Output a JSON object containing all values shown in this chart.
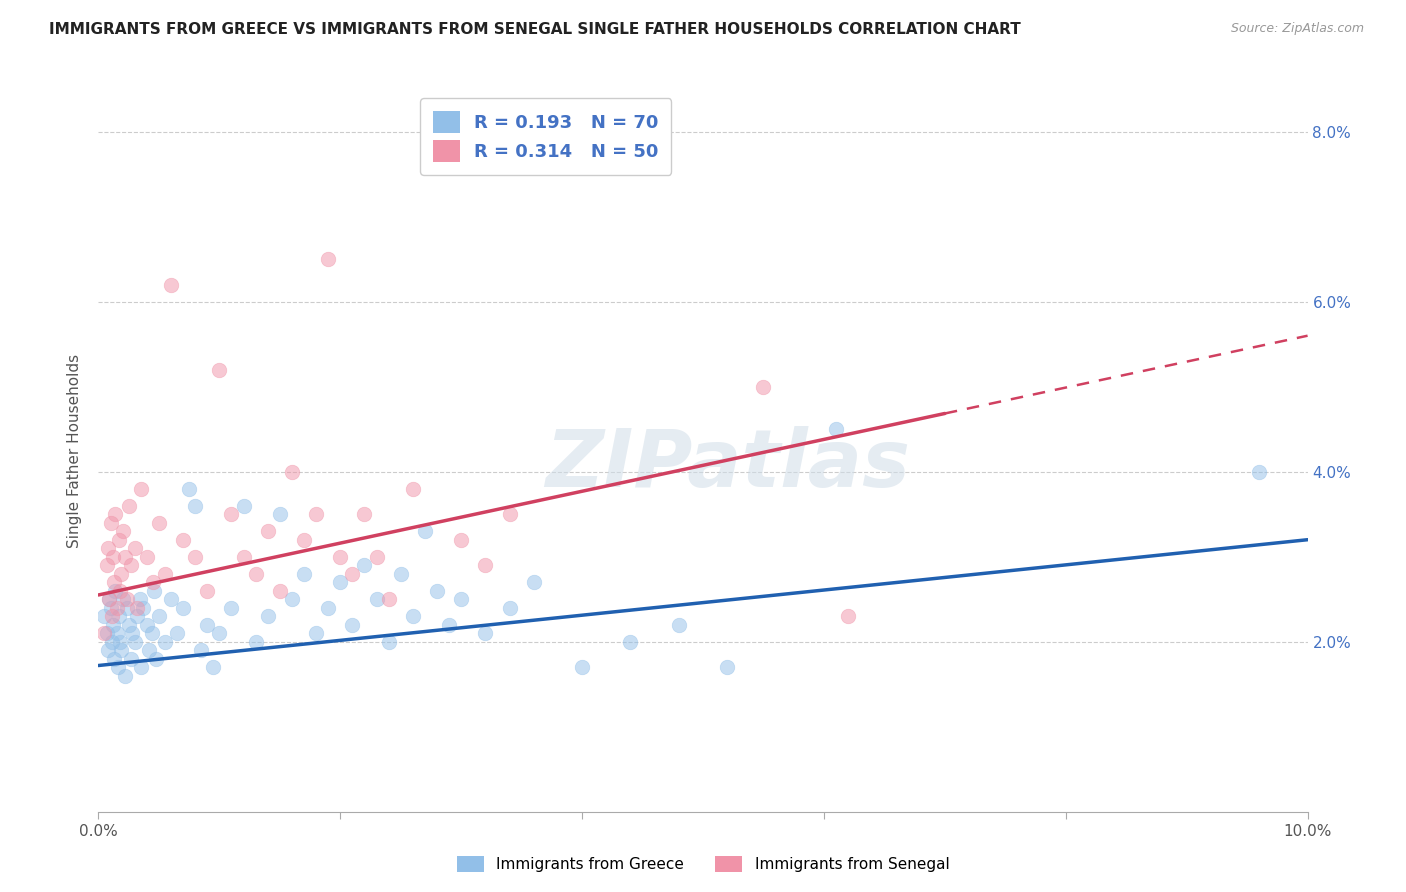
{
  "title": "IMMIGRANTS FROM GREECE VS IMMIGRANTS FROM SENEGAL SINGLE FATHER HOUSEHOLDS CORRELATION CHART",
  "source": "Source: ZipAtlas.com",
  "ylabel": "Single Father Households",
  "xlim": [
    0.0,
    10.0
  ],
  "ylim": [
    0.0,
    8.5
  ],
  "ytick_values": [
    2.0,
    4.0,
    6.0,
    8.0
  ],
  "xtick_values": [
    0.0,
    2.0,
    4.0,
    6.0,
    8.0,
    10.0
  ],
  "greece_color": "#92bfe8",
  "senegal_color": "#f093a8",
  "greece_line_color": "#2060b0",
  "senegal_line_color": "#d04060",
  "watermark": "ZIPatlas",
  "background_color": "#ffffff",
  "greece_R": 0.193,
  "greece_N": 70,
  "senegal_R": 0.314,
  "senegal_N": 50,
  "greece_line_x0": 0.0,
  "greece_line_y0": 1.72,
  "greece_line_x1": 10.0,
  "greece_line_y1": 3.2,
  "senegal_line_x0": 0.0,
  "senegal_line_y0": 2.55,
  "senegal_line_x1": 10.0,
  "senegal_line_y1": 5.6,
  "greece_scatter": [
    [
      0.05,
      2.3
    ],
    [
      0.07,
      2.1
    ],
    [
      0.08,
      1.9
    ],
    [
      0.09,
      2.5
    ],
    [
      0.1,
      2.4
    ],
    [
      0.11,
      2.0
    ],
    [
      0.12,
      2.2
    ],
    [
      0.13,
      1.8
    ],
    [
      0.14,
      2.6
    ],
    [
      0.15,
      2.1
    ],
    [
      0.16,
      1.7
    ],
    [
      0.17,
      2.3
    ],
    [
      0.18,
      2.0
    ],
    [
      0.19,
      1.9
    ],
    [
      0.2,
      2.5
    ],
    [
      0.22,
      1.6
    ],
    [
      0.24,
      2.4
    ],
    [
      0.25,
      2.2
    ],
    [
      0.27,
      1.8
    ],
    [
      0.28,
      2.1
    ],
    [
      0.3,
      2.0
    ],
    [
      0.32,
      2.3
    ],
    [
      0.34,
      2.5
    ],
    [
      0.35,
      1.7
    ],
    [
      0.37,
      2.4
    ],
    [
      0.4,
      2.2
    ],
    [
      0.42,
      1.9
    ],
    [
      0.44,
      2.1
    ],
    [
      0.46,
      2.6
    ],
    [
      0.48,
      1.8
    ],
    [
      0.5,
      2.3
    ],
    [
      0.55,
      2.0
    ],
    [
      0.6,
      2.5
    ],
    [
      0.65,
      2.1
    ],
    [
      0.7,
      2.4
    ],
    [
      0.75,
      3.8
    ],
    [
      0.8,
      3.6
    ],
    [
      0.85,
      1.9
    ],
    [
      0.9,
      2.2
    ],
    [
      0.95,
      1.7
    ],
    [
      1.0,
      2.1
    ],
    [
      1.1,
      2.4
    ],
    [
      1.2,
      3.6
    ],
    [
      1.3,
      2.0
    ],
    [
      1.4,
      2.3
    ],
    [
      1.5,
      3.5
    ],
    [
      1.6,
      2.5
    ],
    [
      1.7,
      2.8
    ],
    [
      1.8,
      2.1
    ],
    [
      1.9,
      2.4
    ],
    [
      2.0,
      2.7
    ],
    [
      2.1,
      2.2
    ],
    [
      2.2,
      2.9
    ],
    [
      2.3,
      2.5
    ],
    [
      2.4,
      2.0
    ],
    [
      2.5,
      2.8
    ],
    [
      2.6,
      2.3
    ],
    [
      2.7,
      3.3
    ],
    [
      2.8,
      2.6
    ],
    [
      2.9,
      2.2
    ],
    [
      3.0,
      2.5
    ],
    [
      3.2,
      2.1
    ],
    [
      3.4,
      2.4
    ],
    [
      3.6,
      2.7
    ],
    [
      4.0,
      1.7
    ],
    [
      4.4,
      2.0
    ],
    [
      4.8,
      2.2
    ],
    [
      5.2,
      1.7
    ],
    [
      6.1,
      4.5
    ],
    [
      9.6,
      4.0
    ]
  ],
  "senegal_scatter": [
    [
      0.05,
      2.1
    ],
    [
      0.07,
      2.9
    ],
    [
      0.08,
      3.1
    ],
    [
      0.09,
      2.5
    ],
    [
      0.1,
      3.4
    ],
    [
      0.11,
      2.3
    ],
    [
      0.12,
      3.0
    ],
    [
      0.13,
      2.7
    ],
    [
      0.14,
      3.5
    ],
    [
      0.15,
      2.4
    ],
    [
      0.17,
      3.2
    ],
    [
      0.18,
      2.6
    ],
    [
      0.19,
      2.8
    ],
    [
      0.2,
      3.3
    ],
    [
      0.22,
      3.0
    ],
    [
      0.24,
      2.5
    ],
    [
      0.25,
      3.6
    ],
    [
      0.27,
      2.9
    ],
    [
      0.3,
      3.1
    ],
    [
      0.32,
      2.4
    ],
    [
      0.35,
      3.8
    ],
    [
      0.4,
      3.0
    ],
    [
      0.45,
      2.7
    ],
    [
      0.5,
      3.4
    ],
    [
      0.55,
      2.8
    ],
    [
      0.6,
      6.2
    ],
    [
      0.7,
      3.2
    ],
    [
      0.8,
      3.0
    ],
    [
      0.9,
      2.6
    ],
    [
      1.0,
      5.2
    ],
    [
      1.1,
      3.5
    ],
    [
      1.2,
      3.0
    ],
    [
      1.3,
      2.8
    ],
    [
      1.4,
      3.3
    ],
    [
      1.5,
      2.6
    ],
    [
      1.6,
      4.0
    ],
    [
      1.7,
      3.2
    ],
    [
      1.8,
      3.5
    ],
    [
      1.9,
      6.5
    ],
    [
      2.0,
      3.0
    ],
    [
      2.1,
      2.8
    ],
    [
      2.2,
      3.5
    ],
    [
      2.3,
      3.0
    ],
    [
      2.4,
      2.5
    ],
    [
      2.6,
      3.8
    ],
    [
      3.0,
      3.2
    ],
    [
      3.2,
      2.9
    ],
    [
      3.4,
      3.5
    ],
    [
      5.5,
      5.0
    ],
    [
      6.2,
      2.3
    ]
  ]
}
